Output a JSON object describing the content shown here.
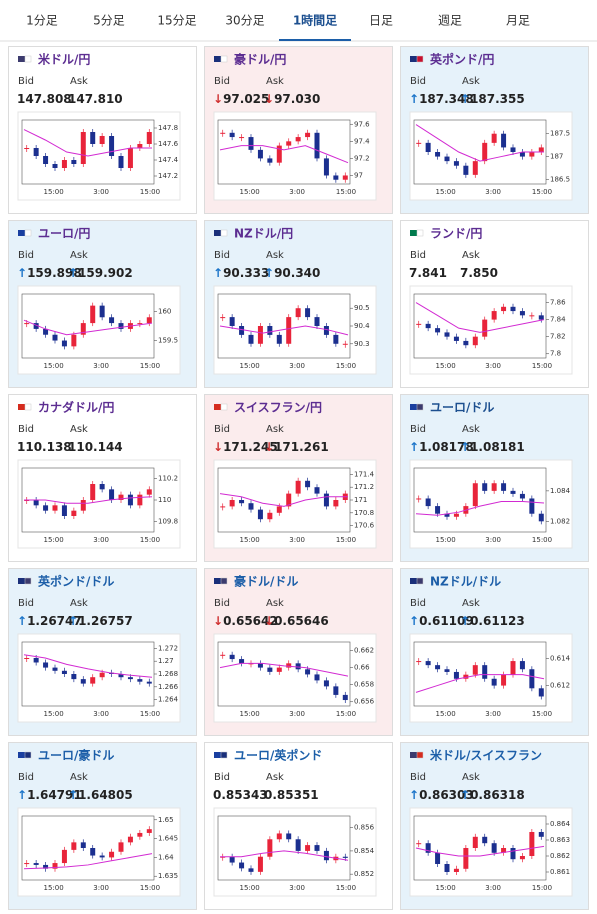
{
  "tabs": [
    "1分足",
    "5分足",
    "15分足",
    "30分足",
    "1時間足",
    "日足",
    "週足",
    "月足"
  ],
  "active_tab": 4,
  "cards": [
    {
      "title": "米ドル/円",
      "title_color": "#5c2d91",
      "trend": "flat",
      "bid_label": "Bid",
      "ask_label": "Ask",
      "bid": "147.808",
      "ask": "147.810",
      "chart": {
        "ylim": [
          147.1,
          147.9
        ],
        "yticks": [
          147.8,
          147.6,
          147.4,
          147.2
        ],
        "xticks": [
          "15:00",
          "3:00",
          "15:00"
        ],
        "closes": [
          147.55,
          147.45,
          147.35,
          147.3,
          147.4,
          147.35,
          147.75,
          147.6,
          147.7,
          147.45,
          147.3,
          147.55,
          147.6,
          147.75
        ],
        "ma": [
          147.78,
          147.65,
          147.5,
          147.45,
          147.5,
          147.55,
          147.55
        ]
      }
    },
    {
      "title": "豪ドル/円",
      "title_color": "#5c2d91",
      "trend": "down",
      "arrow": "↓",
      "bid_label": "Bid",
      "ask_label": "Ask",
      "bid": "97.025",
      "ask": "97.030",
      "chart": {
        "ylim": [
          96.9,
          97.65
        ],
        "yticks": [
          97.6,
          97.4,
          97.2,
          97
        ],
        "xticks": [
          "15:00",
          "3:00",
          "15:00"
        ],
        "closes": [
          97.5,
          97.45,
          97.45,
          97.3,
          97.2,
          97.15,
          97.35,
          97.4,
          97.45,
          97.5,
          97.2,
          97.0,
          96.95,
          97.0
        ],
        "ma": [
          97.3,
          97.35,
          97.35,
          97.3,
          97.35,
          97.25,
          97.15
        ]
      }
    },
    {
      "title": "英ポンド/円",
      "title_color": "#5c2d91",
      "trend": "up",
      "arrow": "↑",
      "bid_label": "Bid",
      "ask_label": "Ask",
      "bid": "187.348",
      "ask": "187.355",
      "chart": {
        "ylim": [
          186.4,
          187.8
        ],
        "yticks": [
          187.5,
          187,
          186.5
        ],
        "xticks": [
          "15:00",
          "3:00",
          "15:00"
        ],
        "closes": [
          187.3,
          187.1,
          187.0,
          186.9,
          186.8,
          186.6,
          186.9,
          187.3,
          187.5,
          187.2,
          187.1,
          187.0,
          187.1,
          187.2
        ],
        "ma": [
          187.7,
          187.4,
          187.1,
          186.9,
          187.0,
          187.1,
          187.1
        ]
      }
    },
    {
      "title": "ユーロ/円",
      "title_color": "#5c2d91",
      "trend": "up",
      "arrow": "↑",
      "bid_label": "Bid",
      "ask_label": "Ask",
      "bid": "159.898",
      "ask": "159.902",
      "chart": {
        "ylim": [
          159.2,
          160.3
        ],
        "yticks": [
          160,
          159.5
        ],
        "xticks": [
          "15:00",
          "3:00",
          "15:00"
        ],
        "closes": [
          159.8,
          159.7,
          159.6,
          159.5,
          159.4,
          159.6,
          159.8,
          160.1,
          159.9,
          159.8,
          159.7,
          159.8,
          159.8,
          159.9
        ],
        "ma": [
          159.85,
          159.7,
          159.6,
          159.65,
          159.7,
          159.75,
          159.8
        ]
      }
    },
    {
      "title": "NZドル/円",
      "title_color": "#5c2d91",
      "trend": "up",
      "arrow": "↑",
      "bid_label": "Bid",
      "ask_label": "Ask",
      "bid": "90.333",
      "ask": "90.340",
      "chart": {
        "ylim": [
          90.22,
          90.58
        ],
        "yticks": [
          90.5,
          90.4,
          90.3
        ],
        "xticks": [
          "15:00",
          "3:00",
          "15:00"
        ],
        "closes": [
          90.45,
          90.4,
          90.35,
          90.3,
          90.4,
          90.35,
          90.3,
          90.45,
          90.5,
          90.45,
          90.4,
          90.35,
          90.3,
          90.3
        ],
        "ma": [
          90.4,
          90.38,
          90.36,
          90.38,
          90.4,
          90.38,
          90.35
        ]
      }
    },
    {
      "title": "ランド/円",
      "title_color": "#5c2d91",
      "trend": "flat",
      "bid_label": "Bid",
      "ask_label": "Ask",
      "bid": "7.841",
      "ask": "7.850",
      "chart": {
        "ylim": [
          7.795,
          7.87
        ],
        "yticks": [
          7.86,
          7.84,
          7.82,
          7.8
        ],
        "xticks": [
          "15:00",
          "3:00",
          "15:00"
        ],
        "closes": [
          7.835,
          7.83,
          7.825,
          7.82,
          7.815,
          7.81,
          7.82,
          7.84,
          7.85,
          7.855,
          7.85,
          7.845,
          7.845,
          7.84
        ],
        "ma": [
          7.86,
          7.845,
          7.83,
          7.825,
          7.83,
          7.835,
          7.84
        ]
      }
    },
    {
      "title": "カナダドル/円",
      "title_color": "#5c2d91",
      "trend": "flat",
      "bid_label": "Bid",
      "ask_label": "Ask",
      "bid": "110.138",
      "ask": "110.144",
      "chart": {
        "ylim": [
          109.7,
          110.3
        ],
        "yticks": [
          110.2,
          110,
          109.8
        ],
        "xticks": [
          "15:00",
          "3:00",
          "15:00"
        ],
        "closes": [
          110.0,
          109.95,
          109.9,
          109.95,
          109.85,
          109.9,
          110.0,
          110.15,
          110.1,
          110.0,
          110.05,
          109.95,
          110.05,
          110.1
        ],
        "ma": [
          110.0,
          110.0,
          109.97,
          109.97,
          110.0,
          110.02,
          110.03
        ]
      }
    },
    {
      "title": "スイスフラン/円",
      "title_color": "#5c2d91",
      "trend": "down",
      "arrow": "↓",
      "bid_label": "Bid",
      "ask_label": "Ask",
      "bid": "171.245",
      "ask": "171.261",
      "chart": {
        "ylim": [
          170.5,
          171.5
        ],
        "yticks": [
          171.4,
          171.2,
          171,
          170.8,
          170.6
        ],
        "xticks": [
          "15:00",
          "3:00",
          "15:00"
        ],
        "closes": [
          170.9,
          171.0,
          170.95,
          170.85,
          170.7,
          170.8,
          170.9,
          171.1,
          171.3,
          171.2,
          171.1,
          170.9,
          171.0,
          171.1
        ],
        "ma": [
          171.1,
          171.05,
          170.95,
          170.9,
          171.0,
          171.05,
          171.05
        ]
      }
    },
    {
      "title": "ユーロ/ドル",
      "title_color": "#1c4f8f",
      "trend": "up",
      "arrow": "↑",
      "bid_label": "Bid",
      "ask_label": "Ask",
      "bid": "1.08178",
      "ask": "1.08181",
      "chart": {
        "ylim": [
          1.0813,
          1.0855
        ],
        "yticks": [
          1.084,
          1.082
        ],
        "xticks": [
          "15:00",
          "3:00",
          "15:00"
        ],
        "closes": [
          1.0835,
          1.083,
          1.0825,
          1.0823,
          1.0825,
          1.083,
          1.0845,
          1.084,
          1.0845,
          1.084,
          1.0838,
          1.0835,
          1.0825,
          1.082
        ],
        "ma": [
          1.0825,
          1.0824,
          1.0826,
          1.083,
          1.0833,
          1.0833,
          1.0832
        ]
      }
    },
    {
      "title": "英ポンド/ドル",
      "title_color": "#1c5ea8",
      "trend": "up",
      "arrow": "↑",
      "bid_label": "Bid",
      "ask_label": "Ask",
      "bid": "1.26747",
      "ask": "1.26757",
      "chart": {
        "ylim": [
          1.263,
          1.273
        ],
        "yticks": [
          1.272,
          1.27,
          1.268,
          1.266,
          1.264
        ],
        "xticks": [
          "15:00",
          "3:00",
          "15:00"
        ],
        "closes": [
          1.2705,
          1.2698,
          1.269,
          1.2685,
          1.268,
          1.2672,
          1.2665,
          1.2675,
          1.2682,
          1.268,
          1.2675,
          1.2672,
          1.2668,
          1.2665
        ],
        "ma": [
          1.271,
          1.2705,
          1.2695,
          1.2688,
          1.2682,
          1.2678,
          1.2675
        ]
      }
    },
    {
      "title": "豪ドル/ドル",
      "title_color": "#1c5ea8",
      "trend": "down",
      "arrow": "↓",
      "bid_label": "Bid",
      "ask_label": "Ask",
      "bid": "0.65642",
      "ask": "0.65646",
      "chart": {
        "ylim": [
          0.6555,
          0.663
        ],
        "yticks": [
          0.662,
          0.66,
          0.658,
          0.656
        ],
        "xticks": [
          "15:00",
          "3:00",
          "15:00"
        ],
        "closes": [
          0.6615,
          0.661,
          0.6605,
          0.6605,
          0.66,
          0.6595,
          0.66,
          0.6605,
          0.6598,
          0.6592,
          0.6585,
          0.6578,
          0.6568,
          0.6562
        ],
        "ma": [
          0.66,
          0.6605,
          0.6605,
          0.6602,
          0.66,
          0.6595,
          0.659
        ]
      }
    },
    {
      "title": "NZドル/ドル",
      "title_color": "#1c5ea8",
      "trend": "up",
      "arrow": "↑",
      "bid_label": "Bid",
      "ask_label": "Ask",
      "bid": "0.61109",
      "ask": "0.61123",
      "chart": {
        "ylim": [
          0.6105,
          0.6152
        ],
        "yticks": [
          0.614,
          0.612
        ],
        "xticks": [
          "15:00",
          "3:00",
          "15:00"
        ],
        "closes": [
          0.6138,
          0.6135,
          0.6132,
          0.613,
          0.6125,
          0.6128,
          0.6135,
          0.6125,
          0.612,
          0.6128,
          0.6138,
          0.6132,
          0.6118,
          0.6112
        ],
        "ma": [
          0.6115,
          0.612,
          0.6125,
          0.6128,
          0.6128,
          0.6128,
          0.6125
        ]
      }
    },
    {
      "title": "ユーロ/豪ドル",
      "title_color": "#1c5ea8",
      "trend": "up",
      "arrow": "↑",
      "bid_label": "Bid",
      "ask_label": "Ask",
      "bid": "1.64791",
      "ask": "1.64805",
      "chart": {
        "ylim": [
          1.634,
          1.651
        ],
        "yticks": [
          1.65,
          1.645,
          1.64,
          1.635
        ],
        "xticks": [
          "15:00",
          "3:00",
          "15:00"
        ],
        "closes": [
          1.6385,
          1.638,
          1.637,
          1.6385,
          1.642,
          1.644,
          1.6425,
          1.6405,
          1.64,
          1.6415,
          1.644,
          1.6455,
          1.6465,
          1.6475
        ],
        "ma": [
          1.637,
          1.6372,
          1.6375,
          1.638,
          1.639,
          1.64,
          1.641
        ]
      }
    },
    {
      "title": "ユーロ/英ポンド",
      "title_color": "#1c5ea8",
      "trend": "flat",
      "bid_label": "Bid",
      "ask_label": "Ask",
      "bid": "0.85343",
      "ask": "0.85351",
      "chart": {
        "ylim": [
          0.8515,
          0.857
        ],
        "yticks": [
          0.856,
          0.854,
          0.852
        ],
        "xticks": [
          "15:00",
          "3:00",
          "15:00"
        ],
        "closes": [
          0.8535,
          0.853,
          0.8525,
          0.8522,
          0.8535,
          0.855,
          0.8555,
          0.855,
          0.854,
          0.8545,
          0.854,
          0.8532,
          0.8535,
          0.8534
        ],
        "ma": [
          0.8535,
          0.8535,
          0.8538,
          0.854,
          0.8538,
          0.8535,
          0.8532
        ]
      }
    },
    {
      "title": "米ドル/スイスフラン",
      "title_color": "#1c5ea8",
      "trend": "up",
      "arrow": "↑",
      "bid_label": "Bid",
      "ask_label": "Ask",
      "bid": "0.86303",
      "ask": "0.86318",
      "chart": {
        "ylim": [
          0.8605,
          0.8645
        ],
        "yticks": [
          0.864,
          0.863,
          0.862,
          0.861
        ],
        "xticks": [
          "15:00",
          "3:00",
          "15:00"
        ],
        "closes": [
          0.8628,
          0.8622,
          0.8615,
          0.861,
          0.8612,
          0.8625,
          0.8632,
          0.8628,
          0.8622,
          0.8625,
          0.8618,
          0.862,
          0.8635,
          0.8632
        ],
        "ma": [
          0.8625,
          0.8622,
          0.862,
          0.862,
          0.8622,
          0.8624,
          0.8626
        ]
      }
    }
  ]
}
